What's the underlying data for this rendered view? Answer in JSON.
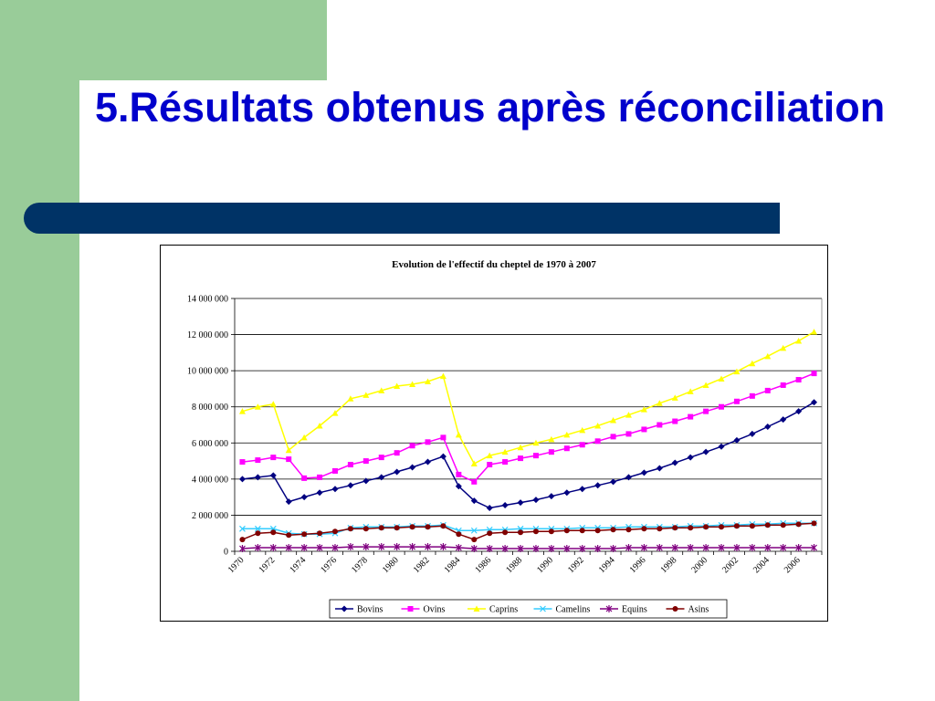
{
  "slide": {
    "title": "5.Résultats obtenus après réconciliation"
  },
  "colors": {
    "green": "#99cc99",
    "title_blue": "#0000cc",
    "bar_navy": "#003366"
  },
  "chart_data": {
    "type": "line",
    "title": "Evolution de l'effectif du cheptel de 1970 à 2007",
    "xlabel": "",
    "ylabel": "",
    "ylim": [
      0,
      14000000
    ],
    "yticks": [
      0,
      2000000,
      4000000,
      6000000,
      8000000,
      10000000,
      12000000,
      14000000
    ],
    "ytick_labels": [
      "0",
      "2 000 000",
      "4 000 000",
      "6 000 000",
      "8 000 000",
      "10 000 000",
      "12 000 000",
      "14 000 000"
    ],
    "x_tick_labels": [
      "1970",
      "1972",
      "1974",
      "1976",
      "1978",
      "1980",
      "1982",
      "1984",
      "1986",
      "1988",
      "1990",
      "1992",
      "1994",
      "1996",
      "1998",
      "2000",
      "2002",
      "2004",
      "2006"
    ],
    "grid": true,
    "legend_position": "bottom",
    "x": [
      1970,
      1971,
      1972,
      1973,
      1974,
      1975,
      1976,
      1977,
      1978,
      1979,
      1980,
      1981,
      1982,
      1983,
      1984,
      1985,
      1986,
      1987,
      1988,
      1989,
      1990,
      1991,
      1992,
      1993,
      1994,
      1995,
      1996,
      1997,
      1998,
      1999,
      2000,
      2001,
      2002,
      2003,
      2004,
      2005,
      2006,
      2007
    ],
    "series": [
      {
        "name": "Bovins",
        "color": "#000080",
        "marker": "diamond",
        "values": [
          4000000,
          4100000,
          4200000,
          2750000,
          3000000,
          3250000,
          3450000,
          3650000,
          3900000,
          4100000,
          4400000,
          4650000,
          4950000,
          5250000,
          3600000,
          2800000,
          2400000,
          2550000,
          2700000,
          2850000,
          3050000,
          3250000,
          3450000,
          3650000,
          3850000,
          4100000,
          4350000,
          4600000,
          4900000,
          5200000,
          5500000,
          5800000,
          6150000,
          6500000,
          6900000,
          7300000,
          7750000,
          8250000
        ]
      },
      {
        "name": "Ovins",
        "color": "#ff00ff",
        "marker": "square",
        "values": [
          4950000,
          5050000,
          5200000,
          5100000,
          4050000,
          4100000,
          4450000,
          4800000,
          5000000,
          5200000,
          5450000,
          5850000,
          6050000,
          6300000,
          4250000,
          3850000,
          4800000,
          4950000,
          5150000,
          5300000,
          5500000,
          5700000,
          5900000,
          6100000,
          6350000,
          6500000,
          6750000,
          7000000,
          7200000,
          7450000,
          7750000,
          8000000,
          8300000,
          8600000,
          8900000,
          9200000,
          9500000,
          9850000
        ]
      },
      {
        "name": "Caprins",
        "color": "#ffff00",
        "marker": "triangle",
        "values": [
          7750000,
          8000000,
          8150000,
          5600000,
          6300000,
          6950000,
          7650000,
          8450000,
          8650000,
          8900000,
          9150000,
          9250000,
          9400000,
          9700000,
          6450000,
          4850000,
          5300000,
          5500000,
          5750000,
          6000000,
          6200000,
          6450000,
          6700000,
          6950000,
          7250000,
          7550000,
          7850000,
          8200000,
          8500000,
          8850000,
          9200000,
          9550000,
          9950000,
          10400000,
          10800000,
          11250000,
          11650000,
          12150000
        ]
      },
      {
        "name": "Camelins",
        "color": "#33ccff",
        "marker": "x",
        "values": [
          1250000,
          1250000,
          1250000,
          1000000,
          950000,
          950000,
          1000000,
          1300000,
          1350000,
          1350000,
          1350000,
          1400000,
          1400000,
          1450000,
          1150000,
          1150000,
          1200000,
          1200000,
          1250000,
          1250000,
          1250000,
          1250000,
          1300000,
          1300000,
          1300000,
          1350000,
          1350000,
          1350000,
          1350000,
          1400000,
          1400000,
          1450000,
          1450000,
          1500000,
          1500000,
          1550000,
          1550000,
          1550000
        ]
      },
      {
        "name": "Equins",
        "color": "#800080",
        "marker": "star",
        "values": [
          150000,
          200000,
          200000,
          200000,
          200000,
          200000,
          200000,
          250000,
          250000,
          250000,
          250000,
          250000,
          250000,
          250000,
          200000,
          150000,
          150000,
          150000,
          150000,
          150000,
          150000,
          150000,
          150000,
          150000,
          150000,
          200000,
          200000,
          200000,
          200000,
          200000,
          200000,
          200000,
          200000,
          200000,
          200000,
          200000,
          200000,
          200000
        ]
      },
      {
        "name": "Asins",
        "color": "#800000",
        "marker": "circle",
        "values": [
          650000,
          1000000,
          1050000,
          900000,
          950000,
          1000000,
          1100000,
          1250000,
          1250000,
          1300000,
          1300000,
          1350000,
          1350000,
          1400000,
          950000,
          650000,
          1000000,
          1050000,
          1050000,
          1100000,
          1100000,
          1150000,
          1150000,
          1150000,
          1200000,
          1200000,
          1250000,
          1250000,
          1300000,
          1300000,
          1350000,
          1350000,
          1400000,
          1400000,
          1450000,
          1450000,
          1500000,
          1550000
        ]
      }
    ]
  }
}
